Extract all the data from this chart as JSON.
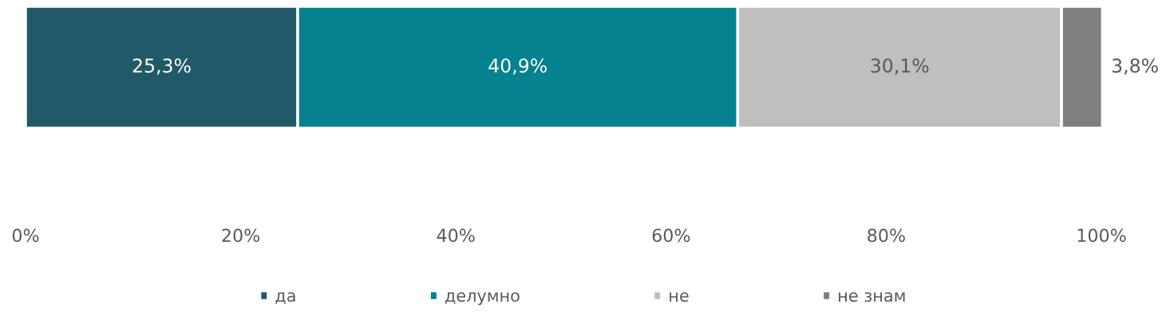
{
  "chart_data": {
    "type": "bar",
    "orientation": "horizontal",
    "stacked": true,
    "categories": [
      null
    ],
    "series": [
      {
        "name": "да",
        "color": "#215968",
        "values": [
          25.3
        ],
        "value_labels": [
          "25,3%"
        ]
      },
      {
        "name": "делумно",
        "color": "#05818f",
        "values": [
          40.9
        ],
        "value_labels": [
          "40,9%"
        ]
      },
      {
        "name": "не",
        "color": "#bfbfbf",
        "values": [
          30.1
        ],
        "value_labels": [
          "30,1%"
        ]
      },
      {
        "name": "не знам",
        "color": "#7f7f7f",
        "values": [
          3.8
        ],
        "value_labels": [
          "3,8%"
        ]
      }
    ],
    "xlim": [
      0,
      100
    ],
    "xticks": [
      {
        "value": 0,
        "label": "0%"
      },
      {
        "value": 20,
        "label": "20%"
      },
      {
        "value": 40,
        "label": "40%"
      },
      {
        "value": 60,
        "label": "60%"
      },
      {
        "value": 80,
        "label": "80%"
      },
      {
        "value": 100,
        "label": "100%"
      }
    ],
    "grid": false,
    "legend": "bottom"
  }
}
